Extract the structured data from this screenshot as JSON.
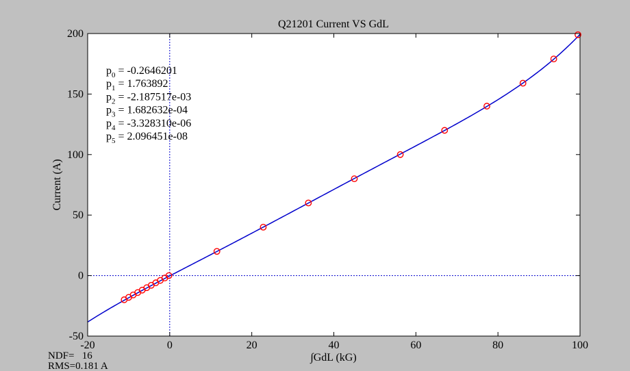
{
  "figure": {
    "background_color": "#c0c0c0",
    "axes_background": "#ffffff"
  },
  "chart_data": {
    "type": "scatter",
    "title": "Q21201 Current VS GdL",
    "xlabel": "∫GdL (kG)",
    "ylabel": "Current (A)",
    "xlim": [
      -20,
      100
    ],
    "ylim": [
      -50,
      200
    ],
    "x_ticks": [
      "-20",
      "0",
      "20",
      "40",
      "60",
      "80",
      "100"
    ],
    "y_ticks": [
      "-50",
      "0",
      "50",
      "100",
      "150",
      "200"
    ],
    "grid": false,
    "reference_lines": {
      "x": 0,
      "y": 0,
      "style": "dotted",
      "color": "#0000cc"
    },
    "series": [
      {
        "kind": "markers",
        "marker": "circle",
        "color": "#ff0000",
        "points": [
          {
            "x": -11.1,
            "y": -20
          },
          {
            "x": -10.0,
            "y": -18
          },
          {
            "x": -8.9,
            "y": -16
          },
          {
            "x": -7.8,
            "y": -14
          },
          {
            "x": -6.7,
            "y": -12
          },
          {
            "x": -5.6,
            "y": -10
          },
          {
            "x": -4.5,
            "y": -8
          },
          {
            "x": -3.4,
            "y": -6
          },
          {
            "x": -2.3,
            "y": -4
          },
          {
            "x": -1.2,
            "y": -2
          },
          {
            "x": -0.2,
            "y": 0
          },
          {
            "x": 11.5,
            "y": 20
          },
          {
            "x": 22.8,
            "y": 40
          },
          {
            "x": 33.8,
            "y": 60
          },
          {
            "x": 45.0,
            "y": 80
          },
          {
            "x": 56.2,
            "y": 100
          },
          {
            "x": 67.0,
            "y": 120
          },
          {
            "x": 77.3,
            "y": 140
          },
          {
            "x": 86.1,
            "y": 159
          },
          {
            "x": 93.6,
            "y": 179
          },
          {
            "x": 99.5,
            "y": 199
          }
        ]
      },
      {
        "kind": "fit",
        "curve": "polynomial",
        "color": "#0000cc",
        "x_range": [
          -20,
          100
        ],
        "coefficients": [
          -0.2646201,
          1.763892,
          -0.002187517,
          0.0001682632,
          -3.32831e-06,
          2.096451e-08
        ]
      }
    ],
    "annotations": {
      "coefficients": [
        {
          "name": "p",
          "sub": "0",
          "value": " = -0.2646201"
        },
        {
          "name": "p",
          "sub": "1",
          "value": " = 1.763892"
        },
        {
          "name": "p",
          "sub": "2",
          "value": " = -2.187517e-03"
        },
        {
          "name": "p",
          "sub": "3",
          "value": " = 1.682632e-04"
        },
        {
          "name": "p",
          "sub": "4",
          "value": " = -3.328310e-06"
        },
        {
          "name": "p",
          "sub": "5",
          "value": " = 2.096451e-08"
        }
      ],
      "ndf": "NDF=   16",
      "rms": "RMS=0.181 A"
    }
  }
}
